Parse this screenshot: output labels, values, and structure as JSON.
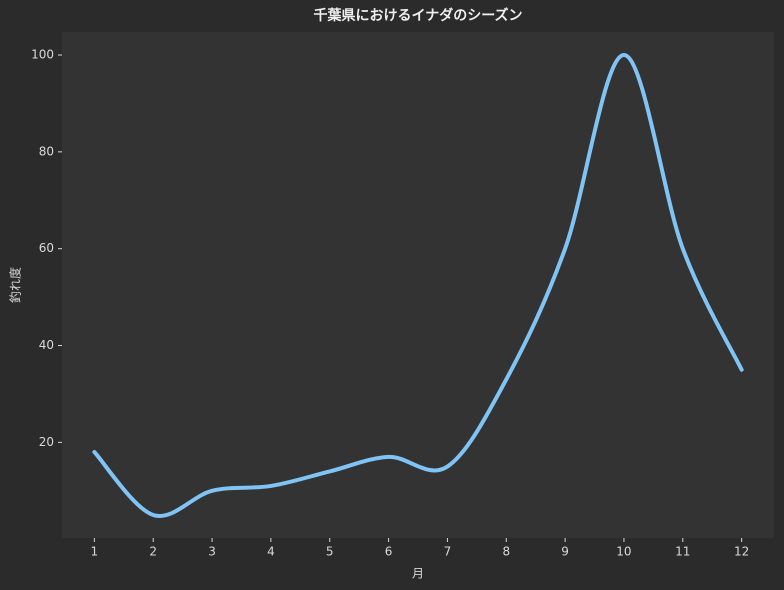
{
  "chart_data": {
    "type": "line",
    "title": "千葉県におけるイナダのシーズン",
    "xlabel": "月",
    "ylabel": "釣れ度",
    "x": [
      1,
      2,
      3,
      4,
      5,
      6,
      7,
      8,
      9,
      10,
      11,
      12
    ],
    "series": [
      {
        "name": "釣れ度",
        "color": "#7fc4f5",
        "values": [
          18,
          5,
          10,
          11,
          14,
          17,
          15,
          33,
          60,
          100,
          60,
          35
        ]
      }
    ],
    "xlim": [
      0.45,
      12.55
    ],
    "xticks": [
      1,
      2,
      3,
      4,
      5,
      6,
      7,
      8,
      9,
      10,
      11,
      12
    ],
    "ylim": [
      0.25,
      104.75
    ],
    "yticks": [
      20,
      40,
      60,
      80,
      100
    ],
    "grid": false,
    "smooth": true
  }
}
